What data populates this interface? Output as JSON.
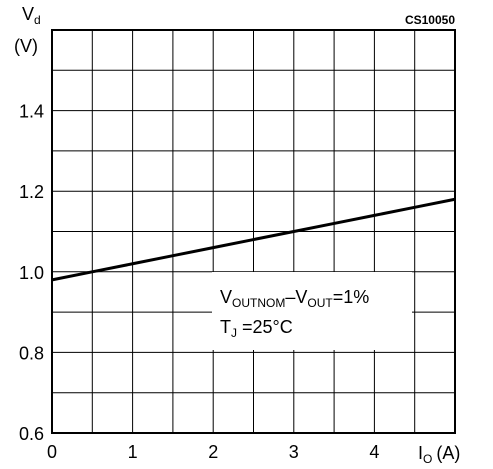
{
  "chart_data": {
    "type": "line",
    "reference_code": "CS10050",
    "y_axis": {
      "label": "V",
      "label_subscript": "d",
      "unit": "(V)",
      "range": [
        0.6,
        1.6
      ],
      "ticks": [
        0.6,
        0.8,
        1.0,
        1.2,
        1.4
      ],
      "tick_labels": [
        "0.6",
        "0.8",
        "1.0",
        "1.2",
        "1.4"
      ],
      "grid_step": 0.1
    },
    "x_axis": {
      "label": "I",
      "label_subscript": "O",
      "unit": "(A)",
      "range": [
        0,
        5
      ],
      "ticks": [
        0,
        1,
        2,
        3,
        4
      ],
      "tick_labels": [
        "0",
        "1",
        "2",
        "3",
        "4"
      ],
      "grid_step": 0.5
    },
    "grid": true,
    "series": [
      {
        "x": [
          0,
          0.5,
          1,
          1.5,
          2,
          2.5,
          3,
          3.5,
          4,
          4.5,
          5
        ],
        "y": [
          0.98,
          1.0,
          1.02,
          1.04,
          1.06,
          1.08,
          1.1,
          1.12,
          1.14,
          1.16,
          1.18
        ]
      }
    ],
    "annotation": {
      "line1_main": "V",
      "line1_sub_a": "OUTNOM",
      "line1_dash": "–V",
      "line1_sub_b": "OUT",
      "line1_end": "=1%",
      "line2_main": "T",
      "line2_sub": "J",
      "line2_end": " =25°C"
    }
  }
}
